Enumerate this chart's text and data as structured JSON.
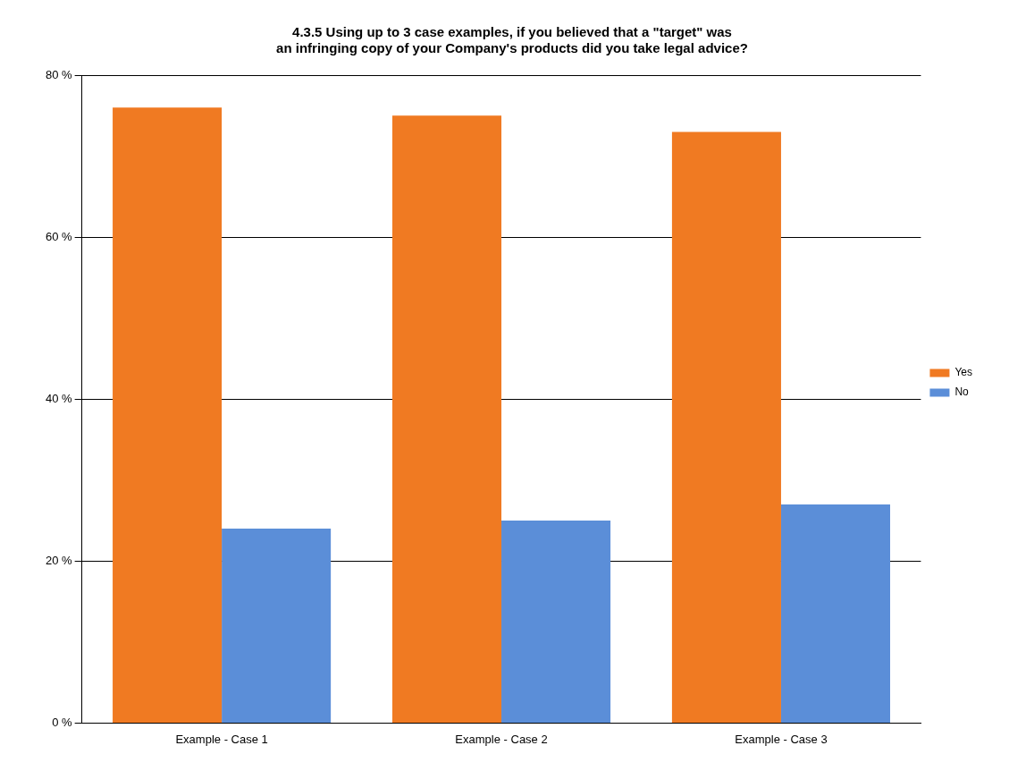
{
  "chart_data": {
    "type": "bar",
    "title": "4.3.5 Using up to 3 case examples, if you believed that a \"target\" was an infringing copy of your Company's products did you take legal advice?",
    "categories": [
      "Example - Case 1",
      "Example - Case 2",
      "Example - Case 3"
    ],
    "series": [
      {
        "name": "Yes",
        "color": "#f07a22",
        "values": [
          76,
          75,
          73
        ]
      },
      {
        "name": "No",
        "color": "#5b8ed8",
        "values": [
          24,
          25,
          27
        ]
      }
    ],
    "ylim": [
      0,
      80
    ],
    "yticks": [
      {
        "value": 0,
        "label": "0 %"
      },
      {
        "value": 20,
        "label": "20 %"
      },
      {
        "value": 40,
        "label": "40 %"
      },
      {
        "value": 60,
        "label": "60 %"
      },
      {
        "value": 80,
        "label": "80 %"
      }
    ],
    "grid": "y",
    "legend": "right"
  }
}
